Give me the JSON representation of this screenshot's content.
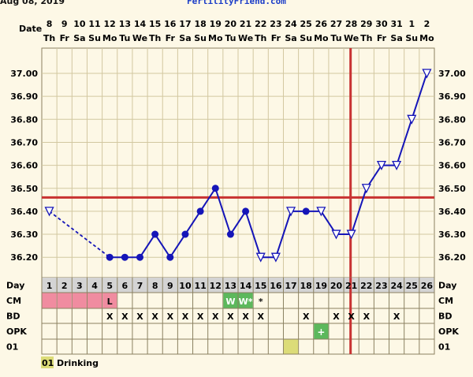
{
  "header": {
    "date_printed": "Aug 08, 2019",
    "site": "FertilityFriend.com"
  },
  "chart_data": {
    "type": "line",
    "dates": [
      "8",
      "9",
      "10",
      "11",
      "12",
      "13",
      "14",
      "15",
      "16",
      "17",
      "18",
      "19",
      "20",
      "21",
      "22",
      "23",
      "24",
      "25",
      "26",
      "27",
      "28",
      "29",
      "30",
      "31",
      "1",
      "2"
    ],
    "weekdays": [
      "Th",
      "Fr",
      "Sa",
      "Su",
      "Mo",
      "Tu",
      "We",
      "Th",
      "Fr",
      "Sa",
      "Su",
      "Mo",
      "Tu",
      "We",
      "Th",
      "Fr",
      "Sa",
      "Su",
      "Mo",
      "Tu",
      "We",
      "Th",
      "Fr",
      "Sa",
      "Su",
      "Mo"
    ],
    "cycle_days": [
      "1",
      "2",
      "3",
      "4",
      "5",
      "6",
      "7",
      "8",
      "9",
      "10",
      "11",
      "12",
      "13",
      "14",
      "15",
      "16",
      "17",
      "18",
      "19",
      "20",
      "21",
      "22",
      "23",
      "24",
      "25",
      "26"
    ],
    "row_labels": {
      "date": "Date",
      "day": "Day",
      "cm": "CM",
      "bd": "BD",
      "opk": "OPK",
      "custom": "01"
    },
    "y_ticks": [
      "37.00",
      "36.90",
      "36.80",
      "36.70",
      "36.60",
      "36.50",
      "36.40",
      "36.30",
      "36.20"
    ],
    "ylim": [
      36.13,
      37.07
    ],
    "temperatures": [
      36.4,
      null,
      null,
      null,
      36.2,
      36.2,
      36.2,
      36.3,
      36.2,
      36.3,
      36.4,
      36.5,
      36.3,
      36.4,
      36.2,
      36.2,
      36.4,
      36.4,
      36.4,
      36.3,
      36.3,
      36.5,
      36.6,
      36.6,
      36.8,
      37.0
    ],
    "markers": [
      "triangle",
      null,
      null,
      null,
      "dot",
      "dot",
      "dot",
      "dot",
      "dot",
      "dot",
      "dot",
      "dot",
      "dot",
      "dot",
      "triangle",
      "triangle",
      "triangle",
      "dot",
      "triangle",
      "triangle",
      "triangle",
      "triangle",
      "triangle",
      "triangle",
      "triangle",
      "triangle"
    ],
    "dashed_gap": [
      1,
      5
    ],
    "coverline": 36.46,
    "ovulation_day": 21,
    "cm": [
      "",
      "",
      "",
      "",
      "L",
      "",
      "",
      "",
      "",
      "",
      "",
      "",
      "W",
      "W*",
      "*",
      "",
      "",
      "",
      "",
      "",
      "",
      "",
      "",
      "",
      "",
      ""
    ],
    "cm_colors": [
      "pink",
      "pink",
      "pink",
      "pink",
      "pink",
      "",
      "",
      "",
      "",
      "",
      "",
      "",
      "green",
      "green",
      "",
      "",
      "",
      "",
      "",
      "",
      "",
      "",
      "",
      "",
      "",
      ""
    ],
    "bd": [
      "",
      "",
      "",
      "",
      "X",
      "X",
      "X",
      "X",
      "X",
      "X",
      "X",
      "X",
      "X",
      "X",
      "X",
      "",
      "",
      "X",
      "",
      "X",
      "X",
      "X",
      "",
      "X",
      "",
      ""
    ],
    "opk": [
      "",
      "",
      "",
      "",
      "",
      "",
      "",
      "",
      "",
      "",
      "",
      "",
      "",
      "",
      "",
      "",
      "",
      "",
      "+",
      "",
      "",
      "",
      "",
      "",
      "",
      ""
    ],
    "custom_flags": [
      false,
      false,
      false,
      false,
      false,
      false,
      false,
      false,
      false,
      false,
      false,
      false,
      false,
      false,
      false,
      false,
      true,
      false,
      false,
      false,
      false,
      false,
      false,
      false,
      false,
      false
    ],
    "legend": {
      "code": "01",
      "label": "Drinking"
    },
    "colors": {
      "line": "#1515b8",
      "coverline": "#c83232",
      "grid": "#d2c7a0",
      "border": "#8a8060",
      "cm_pink": "#f08ca0",
      "cm_green": "#5cb85c",
      "custom_flag": "#dcdc78",
      "background": "#fdf8e6"
    }
  }
}
